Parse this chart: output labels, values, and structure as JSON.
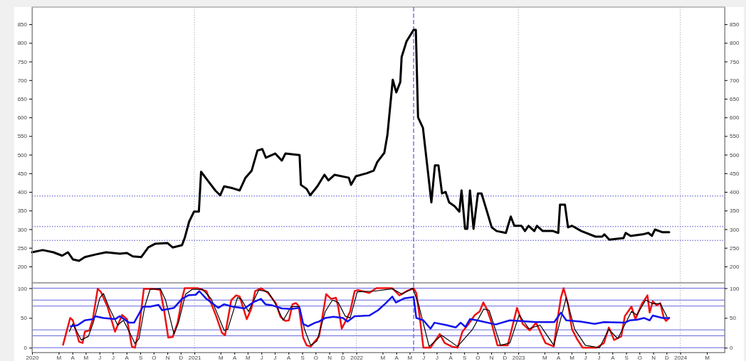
{
  "chart_data": [
    {
      "type": "line",
      "tick_labels": "y",
      "x": [
        "2020-01-01",
        "2020-01-25",
        "2020-02-18",
        "2020-03-09",
        "2020-03-22",
        "2020-04-02",
        "2020-04-16",
        "2020-04-29",
        "2020-05-23",
        "2020-06-16",
        "2020-07-17",
        "2020-08-02",
        "2020-08-15",
        "2020-09-03",
        "2020-09-19",
        "2020-10-05",
        "2020-11-01",
        "2020-11-13",
        "2020-12-04",
        "2020-12-10",
        "2020-12-20",
        "2020-12-31",
        "2021-01-11",
        "2021-01-16",
        "2021-02-01",
        "2021-02-17",
        "2021-02-28",
        "2021-03-09",
        "2021-03-28",
        "2021-04-13",
        "2021-04-26",
        "2021-05-10",
        "2021-05-23",
        "2021-06-03",
        "2021-06-11",
        "2021-07-02",
        "2021-07-17",
        "2021-07-25",
        "2021-08-26",
        "2021-08-29",
        "2021-09-11",
        "2021-09-19",
        "2021-10-05",
        "2021-10-21",
        "2021-10-30",
        "2021-11-13",
        "2021-12-15",
        "2021-12-20",
        "2021-12-31",
        "2022-01-24",
        "2022-02-09",
        "2022-02-17",
        "2022-03-05",
        "2022-03-12",
        "2022-03-24",
        "2022-04-01",
        "2022-04-10",
        "2022-04-13",
        "2022-04-24",
        "2022-05-10",
        "2022-05-15",
        "2022-05-20",
        "2022-05-31",
        "2022-06-11",
        "2022-06-19",
        "2022-06-27",
        "2022-07-05",
        "2022-07-13",
        "2022-07-21",
        "2022-07-29",
        "2022-08-10",
        "2022-08-21",
        "2022-08-26",
        "2022-09-03",
        "2022-09-08",
        "2022-09-14",
        "2022-09-22",
        "2022-10-02",
        "2022-10-10",
        "2022-10-21",
        "2022-11-02",
        "2022-11-13",
        "2022-12-04",
        "2022-12-15",
        "2022-12-23",
        "2023-01-08",
        "2023-01-16",
        "2023-01-24",
        "2023-02-06",
        "2023-02-12",
        "2023-02-25",
        "2023-03-20",
        "2023-04-01",
        "2023-04-05",
        "2023-04-16",
        "2023-04-23",
        "2023-05-02",
        "2023-05-23",
        "2023-06-24",
        "2023-07-09",
        "2023-07-14",
        "2023-07-25",
        "2023-08-26",
        "2023-08-31",
        "2023-09-11",
        "2023-10-08",
        "2023-10-21",
        "2023-10-29",
        "2023-11-05",
        "2023-11-21",
        "2023-12-07"
      ],
      "series": [
        {
          "color": "#000000",
          "values": [
            238,
            244,
            238,
            229,
            238,
            219,
            215,
            225,
            232,
            238,
            234,
            236,
            227,
            225,
            251,
            261,
            263,
            251,
            257,
            276,
            320,
            347,
            347,
            454,
            429,
            404,
            391,
            415,
            410,
            404,
            438,
            457,
            511,
            515,
            492,
            503,
            484,
            503,
            499,
            419,
            408,
            391,
            415,
            446,
            431,
            446,
            438,
            419,
            442,
            450,
            457,
            480,
            505,
            553,
            701,
            667,
            695,
            762,
            804,
            835,
            835,
            600,
            572,
            457,
            372,
            471,
            471,
            396,
            400,
            372,
            362,
            347,
            404,
            301,
            301,
            404,
            301,
            396,
            396,
            353,
            305,
            295,
            290,
            334,
            309,
            309,
            295,
            309,
            295,
            309,
            295,
            295,
            290,
            366,
            366,
            305,
            309,
            295,
            280,
            280,
            286,
            272,
            276,
            290,
            282,
            286,
            290,
            282,
            299,
            292,
            292
          ]
        }
      ],
      "xlim": [
        "2020-01-01",
        "2024-04-10"
      ],
      "ylim": [
        156,
        896
      ],
      "yticks": [
        200,
        250,
        300,
        350,
        400,
        450,
        500,
        550,
        600,
        650,
        700,
        750,
        800,
        850
      ],
      "y2lim": [
        156,
        896
      ],
      "y2ticks": [
        200,
        250,
        300,
        350,
        400,
        450,
        500,
        550,
        600,
        650,
        700,
        750,
        800,
        850
      ],
      "ref_lines": [
        {
          "axis": "x",
          "value": "2021-01-01",
          "color": "#b0b0c0",
          "line_style": "dotted"
        },
        {
          "axis": "x",
          "value": "2022-01-01",
          "color": "#b0b0c0",
          "line_style": "dotted"
        },
        {
          "axis": "x",
          "value": "2023-01-01",
          "color": "#b0b0c0",
          "line_style": "dotted"
        },
        {
          "axis": "x",
          "value": "2024-01-01",
          "color": "#b0b0c0",
          "line_style": "dotted"
        },
        {
          "axis": "x",
          "value": "2022-05-10",
          "color": "#3333cc",
          "line_style": "dashed"
        },
        {
          "axis": "y",
          "value": 389,
          "color": "#4444cc",
          "line_style": "dotted"
        },
        {
          "axis": "y",
          "value": 307,
          "color": "#4444cc",
          "line_style": "dotted"
        },
        {
          "axis": "y",
          "value": 270,
          "color": "#4444cc",
          "line_style": "dotted"
        }
      ]
    },
    {
      "type": "line",
      "series": [
        {
          "color": "#ee1111",
          "x": [
            "2020-03-11",
            "2020-03-27",
            "2020-04-02",
            "2020-04-16",
            "2020-04-24",
            "2020-04-29",
            "2020-05-09",
            "2020-05-17",
            "2020-05-28",
            "2020-06-04",
            "2020-06-19",
            "2020-07-06",
            "2020-07-22",
            "2020-08-02",
            "2020-08-13",
            "2020-08-20",
            "2020-08-29",
            "2020-09-09",
            "2020-09-30",
            "2020-10-16",
            "2020-10-25",
            "2020-11-03",
            "2020-11-13",
            "2020-11-24",
            "2020-12-04",
            "2020-12-10",
            "2021-01-08",
            "2021-01-28",
            "2021-02-19",
            "2021-03-04",
            "2021-03-11",
            "2021-03-25",
            "2021-04-05",
            "2021-04-13",
            "2021-04-29",
            "2021-05-09",
            "2021-05-18",
            "2021-05-31",
            "2021-06-16",
            "2021-07-04",
            "2021-07-14",
            "2021-07-25",
            "2021-08-02",
            "2021-08-10",
            "2021-08-18",
            "2021-08-24",
            "2021-09-03",
            "2021-09-11",
            "2021-09-20",
            "2021-09-30",
            "2021-10-09",
            "2021-10-25",
            "2021-11-05",
            "2021-11-16",
            "2021-11-21",
            "2021-11-29",
            "2021-12-10",
            "2021-12-18",
            "2021-12-28",
            "2022-01-04",
            "2022-01-30",
            "2022-02-15",
            "2022-03-23",
            "2022-04-08",
            "2022-04-24",
            "2022-05-10",
            "2022-05-16",
            "2022-05-24",
            "2022-06-01",
            "2022-06-17",
            "2022-07-08",
            "2022-07-19",
            "2022-08-04",
            "2022-08-17",
            "2022-08-28",
            "2022-09-09",
            "2022-09-25",
            "2022-10-06",
            "2022-10-14",
            "2022-10-22",
            "2022-10-31",
            "2022-11-15",
            "2022-12-08",
            "2022-12-29",
            "2023-01-11",
            "2023-01-27",
            "2023-02-10",
            "2023-03-03",
            "2023-03-22",
            "2023-03-30",
            "2023-04-07",
            "2023-04-13",
            "2023-04-23",
            "2023-05-02",
            "2023-05-13",
            "2023-05-26",
            "2023-06-27",
            "2023-07-13",
            "2023-07-24",
            "2023-08-05",
            "2023-08-21",
            "2023-08-29",
            "2023-09-13",
            "2023-09-22",
            "2023-10-06",
            "2023-10-19",
            "2023-10-24",
            "2023-10-31",
            "2023-11-09",
            "2023-11-17",
            "2023-11-25",
            "2023-11-30",
            "2023-12-07"
          ],
          "values": [
            5,
            50,
            46,
            10,
            8,
            27,
            29,
            48,
            99,
            94,
            69,
            27,
            55,
            48,
            2,
            0,
            31,
            99,
            99,
            97,
            61,
            17,
            18,
            42,
            82,
            100,
            100,
            95,
            53,
            25,
            21,
            80,
            88,
            86,
            48,
            65,
            95,
            100,
            92,
            74,
            52,
            45,
            46,
            73,
            75,
            70,
            17,
            4,
            2,
            11,
            19,
            90,
            82,
            84,
            69,
            32,
            48,
            61,
            95,
            97,
            92,
            100,
            100,
            88,
            95,
            100,
            92,
            50,
            0,
            0,
            23,
            8,
            2,
            0,
            27,
            38,
            55,
            61,
            76,
            65,
            46,
            4,
            4,
            67,
            40,
            29,
            42,
            8,
            2,
            46,
            84,
            100,
            73,
            31,
            15,
            0,
            0,
            8,
            34,
            13,
            19,
            53,
            69,
            48,
            73,
            88,
            59,
            78,
            71,
            75,
            50,
            45,
            50
          ]
        },
        {
          "color": "#000000",
          "x": [
            "2020-03-25",
            "2020-04-02",
            "2020-04-21",
            "2020-05-07",
            "2020-05-18",
            "2020-06-02",
            "2020-06-10",
            "2020-06-23",
            "2020-07-12",
            "2020-07-25",
            "2020-08-07",
            "2020-08-20",
            "2020-08-29",
            "2020-09-11",
            "2020-09-23",
            "2020-10-16",
            "2020-10-28",
            "2020-11-16",
            "2020-11-26",
            "2020-12-12",
            "2020-12-27",
            "2021-01-19",
            "2021-02-08",
            "2021-03-09",
            "2021-03-17",
            "2021-04-08",
            "2021-04-16",
            "2021-05-03",
            "2021-05-26",
            "2021-06-16",
            "2021-07-01",
            "2021-07-20",
            "2021-08-07",
            "2021-08-26",
            "2021-09-06",
            "2021-09-20",
            "2021-10-04",
            "2021-10-23",
            "2021-11-08",
            "2021-11-21",
            "2021-12-07",
            "2021-12-18",
            "2022-01-03",
            "2022-02-10",
            "2022-03-23",
            "2022-04-14",
            "2022-05-08",
            "2022-05-21",
            "2022-06-14",
            "2022-07-12",
            "2022-08-17",
            "2022-09-20",
            "2022-10-15",
            "2022-10-27",
            "2022-11-22",
            "2022-12-13",
            "2023-01-03",
            "2023-01-25",
            "2023-02-19",
            "2023-03-22",
            "2023-04-19",
            "2023-05-08",
            "2023-06-01",
            "2023-07-03",
            "2023-07-24",
            "2023-08-13",
            "2023-09-13",
            "2023-09-25",
            "2023-10-15",
            "2023-10-31",
            "2023-11-17",
            "2023-12-02"
          ],
          "values": [
            27,
            40,
            13,
            19,
            42,
            84,
            91,
            67,
            38,
            46,
            27,
            7,
            15,
            69,
            98,
            99,
            80,
            23,
            42,
            90,
            98,
            98,
            82,
            29,
            31,
            84,
            82,
            61,
            97,
            94,
            76,
            46,
            69,
            69,
            31,
            4,
            11,
            61,
            80,
            76,
            53,
            50,
            94,
            95,
            99,
            90,
            100,
            73,
            2,
            21,
            2,
            31,
            65,
            63,
            4,
            8,
            55,
            32,
            38,
            4,
            84,
            31,
            4,
            0,
            31,
            15,
            61,
            55,
            80,
            74,
            74,
            52
          ]
        },
        {
          "color": "#1111ee",
          "x": [
            "2020-03-28",
            "2020-04-13",
            "2020-04-21",
            "2020-04-29",
            "2020-05-18",
            "2020-05-22",
            "2020-06-10",
            "2020-07-06",
            "2020-07-17",
            "2020-08-07",
            "2020-08-18",
            "2020-09-07",
            "2020-09-23",
            "2020-10-12",
            "2020-10-20",
            "2020-11-16",
            "2020-12-04",
            "2020-12-18",
            "2021-01-04",
            "2021-01-12",
            "2021-01-28",
            "2021-02-24",
            "2021-03-09",
            "2021-03-28",
            "2021-04-24",
            "2021-05-15",
            "2021-05-31",
            "2021-06-10",
            "2021-06-26",
            "2021-07-17",
            "2021-08-07",
            "2021-08-26",
            "2021-09-03",
            "2021-09-14",
            "2021-09-30",
            "2021-10-09",
            "2021-10-23",
            "2021-11-10",
            "2021-12-02",
            "2021-12-12",
            "2021-12-28",
            "2022-01-30",
            "2022-02-19",
            "2022-03-07",
            "2022-03-23",
            "2022-03-31",
            "2022-04-19",
            "2022-05-10",
            "2022-05-16",
            "2022-06-01",
            "2022-06-17",
            "2022-06-26",
            "2022-07-23",
            "2022-08-13",
            "2022-08-24",
            "2022-09-04",
            "2022-09-14",
            "2022-09-30",
            "2022-11-11",
            "2022-12-13",
            "2023-02-10",
            "2023-03-23",
            "2023-04-07",
            "2023-04-19",
            "2023-05-21",
            "2023-06-22",
            "2023-07-13",
            "2023-08-29",
            "2023-09-09",
            "2023-09-25",
            "2023-10-11",
            "2023-10-24",
            "2023-10-31",
            "2023-11-22",
            "2023-12-07"
          ],
          "values": [
            36,
            38,
            42,
            46,
            48,
            53,
            50,
            48,
            53,
            42,
            42,
            69,
            69,
            72,
            63,
            67,
            82,
            88,
            89,
            95,
            82,
            67,
            73,
            69,
            66,
            77,
            82,
            73,
            71,
            66,
            65,
            67,
            40,
            36,
            42,
            44,
            50,
            52,
            50,
            44,
            53,
            54,
            63,
            74,
            86,
            76,
            83,
            85,
            50,
            46,
            32,
            42,
            38,
            34,
            42,
            35,
            48,
            46,
            39,
            46,
            43,
            43,
            59,
            46,
            44,
            40,
            43,
            42,
            46,
            47,
            50,
            46,
            54,
            50,
            50
          ]
        }
      ],
      "xlim": [
        "2020-01-01",
        "2024-04-10"
      ],
      "xticks": [
        {
          "value": "2020-01-01",
          "label": "2020"
        },
        {
          "value": "2020-03-01",
          "label": "M"
        },
        {
          "value": "2020-04-01",
          "label": "A"
        },
        {
          "value": "2020-05-01",
          "label": "M"
        },
        {
          "value": "2020-06-01",
          "label": "J"
        },
        {
          "value": "2020-07-01",
          "label": "J"
        },
        {
          "value": "2020-08-01",
          "label": "A"
        },
        {
          "value": "2020-09-01",
          "label": "S"
        },
        {
          "value": "2020-10-01",
          "label": "O"
        },
        {
          "value": "2020-11-01",
          "label": "N"
        },
        {
          "value": "2020-12-01",
          "label": "D"
        },
        {
          "value": "2021-01-01",
          "label": "2021"
        },
        {
          "value": "2021-03-01",
          "label": "M"
        },
        {
          "value": "2021-04-01",
          "label": "A"
        },
        {
          "value": "2021-05-01",
          "label": "M"
        },
        {
          "value": "2021-06-01",
          "label": "J"
        },
        {
          "value": "2021-07-01",
          "label": "J"
        },
        {
          "value": "2021-08-01",
          "label": "A"
        },
        {
          "value": "2021-09-01",
          "label": "S"
        },
        {
          "value": "2021-10-01",
          "label": "O"
        },
        {
          "value": "2021-11-01",
          "label": "N"
        },
        {
          "value": "2021-12-01",
          "label": "D"
        },
        {
          "value": "2022-01-01",
          "label": "2022"
        },
        {
          "value": "2022-03-01",
          "label": "M"
        },
        {
          "value": "2022-04-01",
          "label": "A"
        },
        {
          "value": "2022-05-01",
          "label": "M"
        },
        {
          "value": "2022-06-01",
          "label": "J"
        },
        {
          "value": "2022-07-01",
          "label": "J"
        },
        {
          "value": "2022-08-01",
          "label": "A"
        },
        {
          "value": "2022-09-01",
          "label": "S"
        },
        {
          "value": "2022-10-01",
          "label": "O"
        },
        {
          "value": "2022-11-01",
          "label": "N"
        },
        {
          "value": "2022-12-01",
          "label": "D"
        },
        {
          "value": "2023-01-01",
          "label": "2023"
        },
        {
          "value": "2023-03-01",
          "label": "M"
        },
        {
          "value": "2023-04-01",
          "label": "A"
        },
        {
          "value": "2023-05-01",
          "label": "M"
        },
        {
          "value": "2023-06-01",
          "label": "J"
        },
        {
          "value": "2023-07-01",
          "label": "J"
        },
        {
          "value": "2023-08-01",
          "label": "A"
        },
        {
          "value": "2023-09-01",
          "label": "S"
        },
        {
          "value": "2023-10-01",
          "label": "O"
        },
        {
          "value": "2023-11-01",
          "label": "N"
        },
        {
          "value": "2023-12-01",
          "label": "D"
        },
        {
          "value": "2024-01-01",
          "label": "2024"
        },
        {
          "value": "2024-03-01",
          "label": "M"
        }
      ],
      "ylim": [
        -8,
        109
      ],
      "yticks": [
        0,
        50,
        100
      ],
      "y2lim": [
        -8,
        109
      ],
      "y2ticks": [
        0,
        50,
        100
      ],
      "ref_lines": [
        {
          "axis": "x",
          "value": "2021-01-01",
          "color": "#b0b0c0",
          "line_style": "dotted"
        },
        {
          "axis": "x",
          "value": "2022-01-01",
          "color": "#b0b0c0",
          "line_style": "dotted"
        },
        {
          "axis": "x",
          "value": "2023-01-01",
          "color": "#b0b0c0",
          "line_style": "dotted"
        },
        {
          "axis": "x",
          "value": "2024-01-01",
          "color": "#b0b0c0",
          "line_style": "dotted"
        },
        {
          "axis": "x",
          "value": "2022-05-10",
          "color": "#3333cc",
          "line_style": "dashed"
        },
        {
          "axis": "y",
          "value": 100,
          "color": "#6666dd",
          "line_style": "solid"
        },
        {
          "axis": "y",
          "value": 80,
          "color": "#6666dd",
          "line_style": "solid"
        },
        {
          "axis": "y",
          "value": 70,
          "color": "#6666dd",
          "line_style": "solid"
        },
        {
          "axis": "y",
          "value": 30,
          "color": "#6666dd",
          "line_style": "solid"
        },
        {
          "axis": "y",
          "value": 20,
          "color": "#6666dd",
          "line_style": "solid"
        },
        {
          "axis": "y",
          "value": 0,
          "color": "#6666dd",
          "line_style": "solid"
        }
      ]
    }
  ]
}
